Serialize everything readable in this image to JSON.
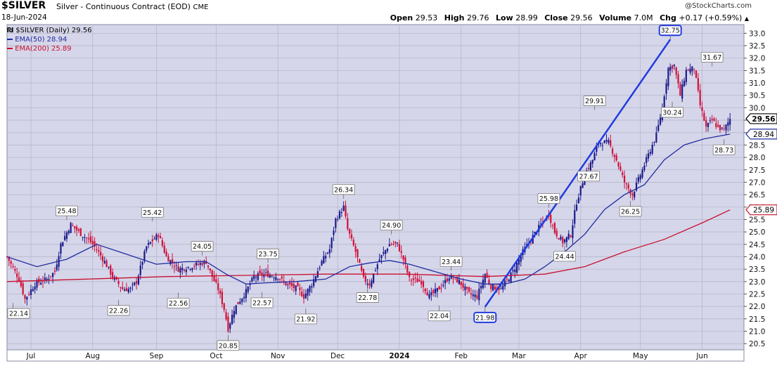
{
  "header": {
    "symbol": "$SILVER",
    "name": "Silver - Continuous Contract (EOD)",
    "exchange": "CME",
    "date": "18-Jun-2024",
    "credit": "@StockCharts.com",
    "open_label": "Open",
    "open": "29.53",
    "high_label": "High",
    "high": "29.76",
    "low_label": "Low",
    "low": "28.99",
    "close_label": "Close",
    "close": "29.56",
    "volume_label": "Volume",
    "volume": "7.0M",
    "chg_label": "Chg",
    "chg": "+0.17 (+0.59%)",
    "chg_arrow": "▲"
  },
  "legend": {
    "main": "$SILVER (Daily) 29.56",
    "ema50": "EMA(50) 28.94",
    "ema200": "EMA(200) 25.89"
  },
  "colors": {
    "plot_bg": "#d6d6ea",
    "up": "#1a1a8c",
    "down": "#d0103a",
    "ema50": "#1f2ca0",
    "ema200": "#c8102e",
    "trendline": "#1f3ce0"
  },
  "chart_data": {
    "type": "candlestick",
    "title": "$SILVER (Daily) 29.56",
    "ylim": [
      20.25,
      33.35
    ],
    "y_axis_position": "right",
    "grid": true,
    "legend_position": "top-left",
    "y_ticks": [
      "20.5",
      "21.0",
      "21.5",
      "22.0",
      "22.5",
      "23.0",
      "23.5",
      "24.0",
      "24.5",
      "25.0",
      "25.5",
      "26.0",
      "26.5",
      "27.0",
      "27.5",
      "28.0",
      "28.5",
      "29.0",
      "29.5",
      "30.0",
      "30.5",
      "31.0",
      "31.5",
      "32.0",
      "32.5",
      "33.0"
    ],
    "x_ticks": [
      {
        "label": "Jul",
        "day": 12
      },
      {
        "label": "Aug",
        "day": 43
      },
      {
        "label": "Sep",
        "day": 75
      },
      {
        "label": "Oct",
        "day": 105
      },
      {
        "label": "Nov",
        "day": 136
      },
      {
        "label": "Dec",
        "day": 166
      },
      {
        "label": "2024",
        "day": 197
      },
      {
        "label": "Feb",
        "day": 228
      },
      {
        "label": "Mar",
        "day": 257
      },
      {
        "label": "Apr",
        "day": 288
      },
      {
        "label": "May",
        "day": 318
      },
      {
        "label": "Jun",
        "day": 349
      }
    ],
    "x_range": [
      0,
      370
    ],
    "close_path": [
      [
        0,
        24.0
      ],
      [
        6,
        23.1
      ],
      [
        9,
        22.3
      ],
      [
        14,
        22.9
      ],
      [
        20,
        23.1
      ],
      [
        24,
        23.4
      ],
      [
        27,
        24.5
      ],
      [
        32,
        25.3
      ],
      [
        36,
        25.0
      ],
      [
        42,
        24.6
      ],
      [
        45,
        24.3
      ],
      [
        49,
        23.8
      ],
      [
        53,
        23.2
      ],
      [
        58,
        22.7
      ],
      [
        62,
        22.7
      ],
      [
        65,
        23.0
      ],
      [
        70,
        24.4
      ],
      [
        76,
        24.9
      ],
      [
        80,
        24.0
      ],
      [
        86,
        23.5
      ],
      [
        92,
        23.6
      ],
      [
        100,
        23.8
      ],
      [
        103,
        23.2
      ],
      [
        106,
        22.7
      ],
      [
        109,
        21.9
      ],
      [
        111,
        21.1
      ],
      [
        114,
        21.9
      ],
      [
        120,
        22.6
      ],
      [
        124,
        23.2
      ],
      [
        130,
        23.3
      ],
      [
        136,
        23.2
      ],
      [
        140,
        22.9
      ],
      [
        146,
        22.7
      ],
      [
        149,
        22.4
      ],
      [
        153,
        22.9
      ],
      [
        158,
        23.8
      ],
      [
        162,
        24.3
      ],
      [
        165,
        25.5
      ],
      [
        169,
        26.0
      ],
      [
        171,
        25.1
      ],
      [
        175,
        24.2
      ],
      [
        179,
        23.1
      ],
      [
        182,
        22.9
      ],
      [
        187,
        23.9
      ],
      [
        192,
        24.5
      ],
      [
        196,
        24.5
      ],
      [
        199,
        23.9
      ],
      [
        202,
        23.1
      ],
      [
        208,
        23.0
      ],
      [
        212,
        22.4
      ],
      [
        218,
        22.8
      ],
      [
        222,
        23.2
      ],
      [
        227,
        23.0
      ],
      [
        232,
        22.5
      ],
      [
        236,
        22.4
      ],
      [
        240,
        23.3
      ],
      [
        243,
        22.8
      ],
      [
        248,
        22.7
      ],
      [
        254,
        23.4
      ],
      [
        259,
        24.2
      ],
      [
        263,
        24.7
      ],
      [
        268,
        25.3
      ],
      [
        272,
        25.7
      ],
      [
        275,
        25.0
      ],
      [
        279,
        24.6
      ],
      [
        283,
        24.9
      ],
      [
        286,
        26.2
      ],
      [
        290,
        27.3
      ],
      [
        294,
        27.9
      ],
      [
        297,
        28.6
      ],
      [
        302,
        28.6
      ],
      [
        306,
        27.9
      ],
      [
        310,
        27.0
      ],
      [
        314,
        26.5
      ],
      [
        318,
        27.3
      ],
      [
        322,
        28.1
      ],
      [
        326,
        28.9
      ],
      [
        329,
        30.0
      ],
      [
        332,
        31.6
      ],
      [
        335,
        31.7
      ],
      [
        338,
        30.5
      ],
      [
        341,
        31.5
      ],
      [
        345,
        31.6
      ],
      [
        348,
        30.1
      ],
      [
        351,
        29.2
      ],
      [
        354,
        29.5
      ],
      [
        357,
        29.2
      ],
      [
        360,
        29.1
      ],
      [
        363,
        29.56
      ]
    ],
    "ema50": [
      [
        0,
        24.0
      ],
      [
        15,
        23.6
      ],
      [
        30,
        23.9
      ],
      [
        45,
        24.5
      ],
      [
        60,
        24.1
      ],
      [
        75,
        23.7
      ],
      [
        90,
        23.8
      ],
      [
        100,
        23.8
      ],
      [
        110,
        23.3
      ],
      [
        120,
        22.9
      ],
      [
        130,
        22.95
      ],
      [
        145,
        23.0
      ],
      [
        160,
        23.1
      ],
      [
        172,
        23.6
      ],
      [
        182,
        23.75
      ],
      [
        192,
        23.85
      ],
      [
        202,
        23.7
      ],
      [
        215,
        23.4
      ],
      [
        228,
        23.1
      ],
      [
        240,
        22.9
      ],
      [
        250,
        22.9
      ],
      [
        260,
        23.1
      ],
      [
        270,
        23.6
      ],
      [
        280,
        24.2
      ],
      [
        290,
        24.9
      ],
      [
        300,
        25.9
      ],
      [
        310,
        26.5
      ],
      [
        320,
        26.9
      ],
      [
        330,
        27.9
      ],
      [
        340,
        28.5
      ],
      [
        350,
        28.75
      ],
      [
        363,
        28.94
      ]
    ],
    "ema200": [
      [
        0,
        23.0
      ],
      [
        40,
        23.1
      ],
      [
        80,
        23.2
      ],
      [
        120,
        23.25
      ],
      [
        160,
        23.3
      ],
      [
        200,
        23.3
      ],
      [
        240,
        23.2
      ],
      [
        270,
        23.3
      ],
      [
        290,
        23.6
      ],
      [
        310,
        24.2
      ],
      [
        330,
        24.7
      ],
      [
        350,
        25.4
      ],
      [
        363,
        25.89
      ]
    ],
    "annotations": [
      {
        "text": "22.14",
        "day": 3,
        "value": 22.14,
        "pos": "below"
      },
      {
        "text": "25.48",
        "day": 30,
        "value": 25.48,
        "pos": "above"
      },
      {
        "text": "22.26",
        "day": 56,
        "value": 22.26,
        "pos": "below"
      },
      {
        "text": "25.42",
        "day": 73,
        "value": 25.42,
        "pos": "above"
      },
      {
        "text": "22.56",
        "day": 86,
        "value": 22.56,
        "pos": "below"
      },
      {
        "text": "24.05",
        "day": 98,
        "value": 24.05,
        "pos": "above"
      },
      {
        "text": "20.85",
        "day": 111,
        "value": 20.85,
        "pos": "below"
      },
      {
        "text": "23.75",
        "day": 131,
        "value": 23.75,
        "pos": "above"
      },
      {
        "text": "22.57",
        "day": 128,
        "value": 22.57,
        "pos": "below"
      },
      {
        "text": "21.92",
        "day": 150,
        "value": 21.92,
        "pos": "below"
      },
      {
        "text": "26.34",
        "day": 169,
        "value": 26.34,
        "pos": "above"
      },
      {
        "text": "22.78",
        "day": 181,
        "value": 22.78,
        "pos": "below"
      },
      {
        "text": "24.90",
        "day": 193,
        "value": 24.9,
        "pos": "above"
      },
      {
        "text": "23.44",
        "day": 223,
        "value": 23.44,
        "pos": "above"
      },
      {
        "text": "22.04",
        "day": 217,
        "value": 22.04,
        "pos": "below"
      },
      {
        "text": "21.98",
        "day": 240,
        "value": 21.98,
        "pos": "below",
        "boxed": true
      },
      {
        "text": "25.98",
        "day": 272,
        "value": 25.98,
        "pos": "above"
      },
      {
        "text": "24.44",
        "day": 280,
        "value": 24.44,
        "pos": "below"
      },
      {
        "text": "29.91",
        "day": 295,
        "value": 29.91,
        "pos": "above"
      },
      {
        "text": "27.67",
        "day": 292,
        "value": 27.67,
        "pos": "below"
      },
      {
        "text": "26.25",
        "day": 313,
        "value": 26.25,
        "pos": "below"
      },
      {
        "text": "32.75",
        "day": 333,
        "value": 32.75,
        "pos": "above",
        "boxed": true
      },
      {
        "text": "30.24",
        "day": 334,
        "value": 30.24,
        "pos": "below"
      },
      {
        "text": "31.67",
        "day": 354,
        "value": 31.67,
        "pos": "above"
      },
      {
        "text": "28.73",
        "day": 360,
        "value": 28.73,
        "pos": "below"
      }
    ],
    "trendline": {
      "from": {
        "day": 240,
        "value": 21.98
      },
      "to": {
        "day": 333,
        "value": 32.75
      }
    },
    "price_tags": [
      {
        "text": "29.56",
        "value": 29.56,
        "style": "last"
      },
      {
        "text": "28.94",
        "value": 28.94,
        "style": "ema50"
      },
      {
        "text": "25.89",
        "value": 25.89,
        "style": "ema200"
      }
    ]
  }
}
